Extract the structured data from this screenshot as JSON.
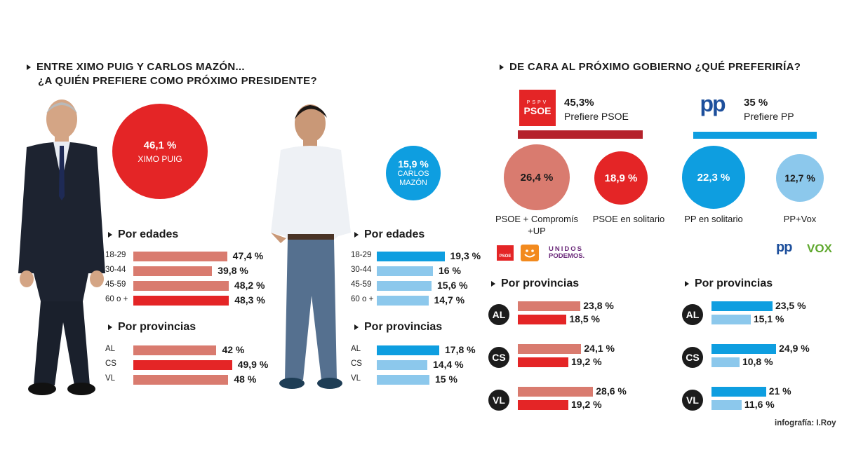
{
  "left": {
    "heading_line1": "ENTRE XIMO PUIG Y CARLOS MAZÓN...",
    "heading_line2": "¿A QUIÉN PREFIERE COMO PRÓXIMO PRESIDENTE?",
    "puig": {
      "value_label": "46,1 %",
      "name": "XIMO PUIG",
      "value": 46.1
    },
    "mazon": {
      "value_label": "15,9 %",
      "name_line1": "CARLOS",
      "name_line2": "MAZÓN",
      "value": 15.9
    },
    "edades_title": "Por edades",
    "provincias_title": "Por provincias"
  },
  "right": {
    "heading": "DE CARA AL PRÓXIMO GOBIERNO ¿QUÉ PREFERIRÍA?",
    "psoe": {
      "logo_small": "PSPV",
      "logo_main": "PSOE",
      "pct": "45,3%",
      "label": "Prefiere PSOE",
      "value": 45.3
    },
    "pp": {
      "logo": "pp",
      "pct": "35 %",
      "label": "Prefiere PP",
      "value": 35
    },
    "options": [
      {
        "value_label": "26,4 %",
        "value": 26.4,
        "caption_line1": "PSOE + Compromís",
        "caption_line2": "+UP"
      },
      {
        "value_label": "18,9 %",
        "value": 18.9,
        "caption_line1": "PSOE en solitario",
        "caption_line2": ""
      },
      {
        "value_label": "22,3 %",
        "value": 22.3,
        "caption_line1": "PP en solitario",
        "caption_line2": ""
      },
      {
        "value_label": "12,7 %",
        "value": 12.7,
        "caption_line1": "PP+Vox",
        "caption_line2": ""
      }
    ],
    "small_logos": {
      "psoe": "PSOE",
      "unidos_line1": "UNIDOS",
      "unidos_line2": "PODEMOS.",
      "pp": "pp",
      "vox": "VOX"
    },
    "provincias_title": "Por provincias",
    "credit": "infografía: I.Roy"
  },
  "colors": {
    "red": "#e42526",
    "salmon": "#d97b6f",
    "blue": "#0e9ee0",
    "light_blue": "#8cc8ec",
    "dark_red": "#b5222b",
    "badge": "#1c1c1c"
  },
  "chart_data": [
    {
      "type": "bar",
      "title": "Por edades",
      "series_name": "XIMO PUIG",
      "categories": [
        "18-29",
        "30-44",
        "45-59",
        "60 o +"
      ],
      "values": [
        47.4,
        39.8,
        48.2,
        48.3
      ],
      "value_labels": [
        "47,4 %",
        "39,8 %",
        "48,2 %",
        "48,3 %"
      ]
    },
    {
      "type": "bar",
      "title": "Por provincias",
      "series_name": "XIMO PUIG",
      "categories": [
        "AL",
        "CS",
        "VL"
      ],
      "values": [
        42,
        49.9,
        48
      ],
      "value_labels": [
        "42 %",
        "49,9 %",
        "48 %"
      ]
    },
    {
      "type": "bar",
      "title": "Por edades",
      "series_name": "CARLOS MAZÓN",
      "categories": [
        "18-29",
        "30-44",
        "45-59",
        "60 o +"
      ],
      "values": [
        19.3,
        16,
        15.6,
        14.7
      ],
      "value_labels": [
        "19,3 %",
        "16 %",
        "15,6 %",
        "14,7 %"
      ]
    },
    {
      "type": "bar",
      "title": "Por provincias",
      "series_name": "CARLOS MAZÓN",
      "categories": [
        "AL",
        "CS",
        "VL"
      ],
      "values": [
        17.8,
        14.4,
        15
      ],
      "value_labels": [
        "17,8 %",
        "14,4 %",
        "15 %"
      ]
    },
    {
      "type": "bar",
      "title": "Por provincias",
      "categories": [
        "AL",
        "CS",
        "VL"
      ],
      "series": [
        {
          "name": "PSOE + Compromís +UP",
          "values": [
            23.8,
            24.1,
            28.6
          ],
          "value_labels": [
            "23,8 %",
            "24,1 %",
            "28,6 %"
          ]
        },
        {
          "name": "PSOE en solitario",
          "values": [
            18.5,
            19.2,
            19.2
          ],
          "value_labels": [
            "18,5 %",
            "19,2 %",
            "19,2 %"
          ]
        }
      ]
    },
    {
      "type": "bar",
      "title": "Por provincias",
      "categories": [
        "AL",
        "CS",
        "VL"
      ],
      "series": [
        {
          "name": "PP en solitario",
          "values": [
            23.5,
            24.9,
            21
          ],
          "value_labels": [
            "23,5 %",
            "24,9 %",
            "21 %"
          ]
        },
        {
          "name": "PP+Vox",
          "values": [
            15.1,
            10.8,
            11.6
          ],
          "value_labels": [
            "15,1 %",
            "10,8 %",
            "11,6 %"
          ]
        }
      ]
    }
  ]
}
